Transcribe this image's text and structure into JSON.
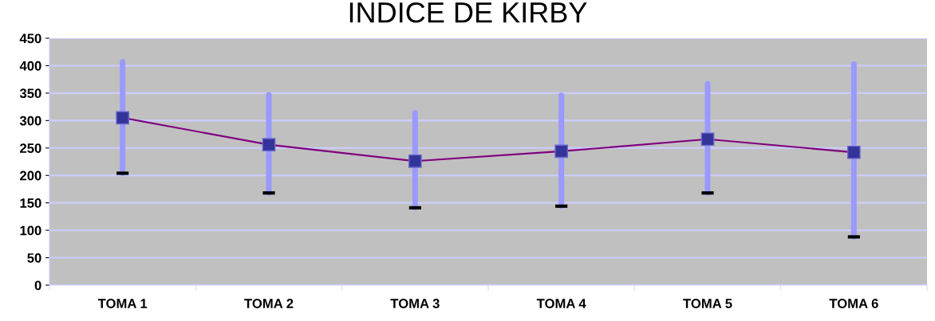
{
  "chart_data": {
    "type": "line",
    "title": "INDICE DE KIRBY",
    "categories": [
      "TOMA 1",
      "TOMA 2",
      "TOMA 3",
      "TOMA 4",
      "TOMA 5",
      "TOMA 6"
    ],
    "series": [
      {
        "color": "#800080",
        "values": [
          305,
          256,
          226,
          244,
          266,
          242
        ],
        "errors": [
          [
            204,
            407
          ],
          [
            168,
            347
          ],
          [
            141,
            314
          ],
          [
            144,
            346
          ],
          [
            168,
            367
          ],
          [
            88,
            403
          ]
        ]
      }
    ],
    "ylim": [
      0,
      450
    ],
    "yticks": [
      0,
      50,
      100,
      150,
      200,
      250,
      300,
      350,
      400,
      450
    ],
    "grid": "y",
    "marker": "square",
    "line_style": "solid"
  }
}
